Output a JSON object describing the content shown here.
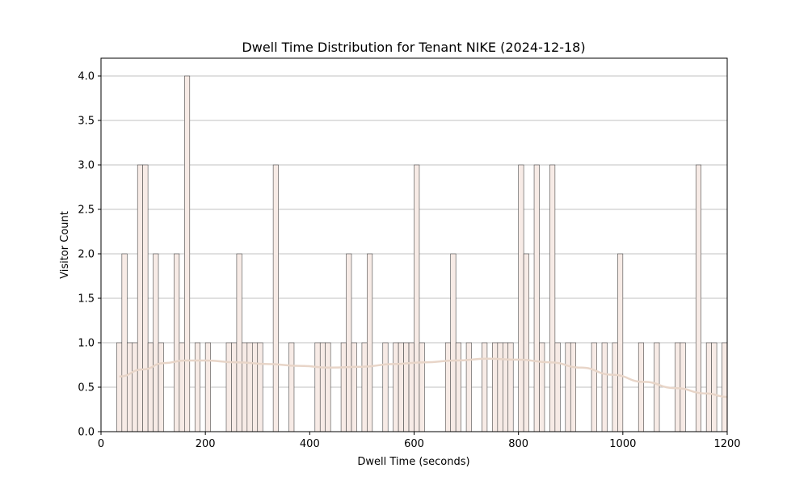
{
  "chart_data": {
    "type": "bar",
    "title": "Dwell Time Distribution for Tenant NIKE (2024-12-18)",
    "xlabel": "Dwell Time (seconds)",
    "ylabel": "Visitor Count",
    "xlim": [
      0,
      1200
    ],
    "ylim": [
      0,
      4.2
    ],
    "xticks": [
      "0",
      "200",
      "400",
      "600",
      "800",
      "1000",
      "1200"
    ],
    "xtick_values": [
      0,
      200,
      400,
      600,
      800,
      1000,
      1200
    ],
    "yticks": [
      "0.0",
      "0.5",
      "1.0",
      "1.5",
      "2.0",
      "2.5",
      "3.0",
      "3.5",
      "4.0"
    ],
    "ytick_values": [
      0,
      0.5,
      1,
      1.5,
      2,
      2.5,
      3,
      3.5,
      4
    ],
    "grid": "y",
    "bin_width": 10,
    "bins": [
      {
        "x": 30,
        "count": 1
      },
      {
        "x": 40,
        "count": 2
      },
      {
        "x": 50,
        "count": 1
      },
      {
        "x": 60,
        "count": 1
      },
      {
        "x": 70,
        "count": 3
      },
      {
        "x": 80,
        "count": 3
      },
      {
        "x": 90,
        "count": 1
      },
      {
        "x": 100,
        "count": 2
      },
      {
        "x": 110,
        "count": 1
      },
      {
        "x": 140,
        "count": 2
      },
      {
        "x": 150,
        "count": 1
      },
      {
        "x": 160,
        "count": 4
      },
      {
        "x": 180,
        "count": 1
      },
      {
        "x": 200,
        "count": 1
      },
      {
        "x": 240,
        "count": 1
      },
      {
        "x": 250,
        "count": 1
      },
      {
        "x": 260,
        "count": 2
      },
      {
        "x": 270,
        "count": 1
      },
      {
        "x": 280,
        "count": 1
      },
      {
        "x": 290,
        "count": 1
      },
      {
        "x": 300,
        "count": 1
      },
      {
        "x": 330,
        "count": 3
      },
      {
        "x": 360,
        "count": 1
      },
      {
        "x": 410,
        "count": 1
      },
      {
        "x": 420,
        "count": 1
      },
      {
        "x": 430,
        "count": 1
      },
      {
        "x": 460,
        "count": 1
      },
      {
        "x": 470,
        "count": 2
      },
      {
        "x": 480,
        "count": 1
      },
      {
        "x": 500,
        "count": 1
      },
      {
        "x": 510,
        "count": 2
      },
      {
        "x": 540,
        "count": 1
      },
      {
        "x": 560,
        "count": 1
      },
      {
        "x": 570,
        "count": 1
      },
      {
        "x": 580,
        "count": 1
      },
      {
        "x": 590,
        "count": 1
      },
      {
        "x": 600,
        "count": 3
      },
      {
        "x": 610,
        "count": 1
      },
      {
        "x": 660,
        "count": 1
      },
      {
        "x": 670,
        "count": 2
      },
      {
        "x": 680,
        "count": 1
      },
      {
        "x": 700,
        "count": 1
      },
      {
        "x": 730,
        "count": 1
      },
      {
        "x": 750,
        "count": 1
      },
      {
        "x": 760,
        "count": 1
      },
      {
        "x": 770,
        "count": 1
      },
      {
        "x": 780,
        "count": 1
      },
      {
        "x": 800,
        "count": 3
      },
      {
        "x": 810,
        "count": 2
      },
      {
        "x": 830,
        "count": 3
      },
      {
        "x": 840,
        "count": 1
      },
      {
        "x": 860,
        "count": 3
      },
      {
        "x": 870,
        "count": 1
      },
      {
        "x": 890,
        "count": 1
      },
      {
        "x": 900,
        "count": 1
      },
      {
        "x": 940,
        "count": 1
      },
      {
        "x": 960,
        "count": 1
      },
      {
        "x": 980,
        "count": 1
      },
      {
        "x": 990,
        "count": 2
      },
      {
        "x": 1030,
        "count": 1
      },
      {
        "x": 1060,
        "count": 1
      },
      {
        "x": 1100,
        "count": 1
      },
      {
        "x": 1110,
        "count": 1
      },
      {
        "x": 1140,
        "count": 3
      },
      {
        "x": 1160,
        "count": 1
      },
      {
        "x": 1170,
        "count": 1
      },
      {
        "x": 1190,
        "count": 1
      }
    ],
    "kde": {
      "x": [
        35,
        80,
        120,
        160,
        200,
        260,
        320,
        380,
        440,
        500,
        560,
        620,
        680,
        740,
        800,
        860,
        920,
        980,
        1040,
        1100,
        1160,
        1200
      ],
      "y": [
        0.62,
        0.7,
        0.77,
        0.8,
        0.8,
        0.78,
        0.76,
        0.74,
        0.72,
        0.73,
        0.76,
        0.78,
        0.8,
        0.82,
        0.81,
        0.78,
        0.72,
        0.64,
        0.56,
        0.49,
        0.43,
        0.39
      ]
    },
    "colors": {
      "bar_fill": "#f7ebe6",
      "bar_edge": "#4a4a4a",
      "kde_line": "#e8d5c8",
      "grid": "#c0c0c0",
      "axes": "#000000"
    }
  }
}
